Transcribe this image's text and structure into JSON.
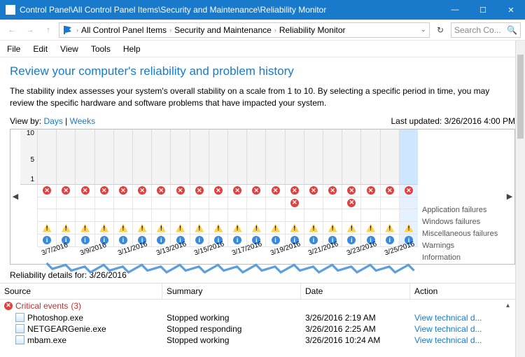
{
  "window": {
    "title": "Control Panel\\All Control Panel Items\\Security and Maintenance\\Reliability Monitor"
  },
  "breadcrumb": [
    "All Control Panel Items",
    "Security and Maintenance",
    "Reliability Monitor"
  ],
  "search_placeholder": "Search Co...",
  "menubar": [
    "File",
    "Edit",
    "View",
    "Tools",
    "Help"
  ],
  "heading": "Review your computer's reliability and problem history",
  "description": "The stability index assesses your system's overall stability on a scale from 1 to 10. By selecting a specific period in time, you may review the specific hardware and software problems that have impacted your system.",
  "view_by_label": "View by:",
  "view_days": "Days",
  "view_weeks": "Weeks",
  "last_updated_label": "Last updated:",
  "last_updated_value": "3/26/2016 4:00 PM",
  "chart": {
    "y_ticks": [
      10,
      5,
      1
    ],
    "line_color": "#5d9edc",
    "grid_bg": "#f3f3f3",
    "sel_bg": "#cfe6ff",
    "values": [
      2.1,
      2.0,
      1.9,
      2.0,
      1.9,
      2.0,
      1.9,
      2.0,
      1.9,
      2.0,
      1.9,
      2.0,
      1.9,
      2.0,
      1.9,
      2.0,
      1.9,
      2.0,
      1.9,
      2.0
    ],
    "dates": [
      "3/7/2016",
      "3/9/2016",
      "3/11/2016",
      "3/13/2016",
      "3/15/2016",
      "3/17/2016",
      "3/19/2016",
      "3/21/2016",
      "3/23/2016",
      "3/25/2016"
    ],
    "selected_col": 19,
    "bands": {
      "icon_colors": {
        "err": "#e04040",
        "warn": "#ffd24a",
        "info": "#3a8adb"
      },
      "app_fail": [
        1,
        1,
        1,
        1,
        1,
        1,
        1,
        1,
        1,
        1,
        1,
        1,
        1,
        1,
        1,
        1,
        1,
        1,
        1,
        1
      ],
      "win_fail": [
        0,
        0,
        0,
        0,
        0,
        0,
        0,
        0,
        0,
        0,
        0,
        0,
        0,
        1,
        0,
        0,
        1,
        0,
        0,
        0
      ],
      "misc_fail": [
        0,
        0,
        0,
        0,
        0,
        0,
        0,
        0,
        0,
        0,
        0,
        0,
        0,
        0,
        0,
        0,
        0,
        0,
        0,
        0
      ],
      "warnings": [
        1,
        1,
        1,
        1,
        1,
        1,
        1,
        1,
        1,
        1,
        1,
        1,
        1,
        1,
        1,
        1,
        1,
        1,
        1,
        1
      ],
      "info": [
        1,
        1,
        1,
        1,
        1,
        1,
        1,
        1,
        1,
        1,
        1,
        1,
        1,
        1,
        1,
        1,
        1,
        1,
        1,
        1
      ]
    },
    "legend": [
      "Application failures",
      "Windows failures",
      "Miscellaneous failures",
      "Warnings",
      "Information"
    ]
  },
  "details_for_label": "Reliability details for:",
  "details_for_date": "3/26/2016",
  "columns": [
    "Source",
    "Summary",
    "Date",
    "Action"
  ],
  "group": {
    "label": "Critical events",
    "count": "(3)"
  },
  "rows": [
    {
      "source": "Photoshop.exe",
      "summary": "Stopped working",
      "date": "3/26/2016 2:19 AM",
      "action": "View  technical d..."
    },
    {
      "source": "NETGEARGenie.exe",
      "summary": "Stopped responding",
      "date": "3/26/2016 2:25 AM",
      "action": "View  technical d..."
    },
    {
      "source": "mbam.exe",
      "summary": "Stopped working",
      "date": "3/26/2016 10:24 AM",
      "action": "View  technical d..."
    }
  ]
}
